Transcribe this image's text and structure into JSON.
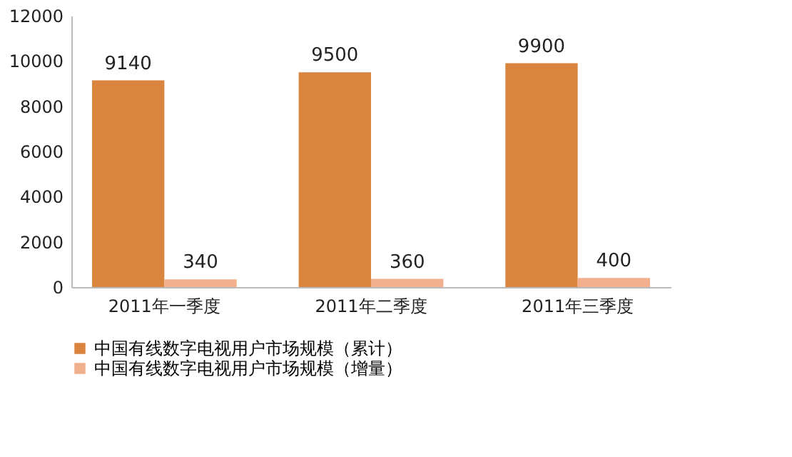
{
  "chart_data": {
    "type": "bar",
    "categories": [
      "2011年一季度",
      "2011年二季度",
      "2011年三季度"
    ],
    "series": [
      {
        "name": "中国有线数字电视用户市场规模（累计）",
        "color": "#d9843f",
        "values": [
          9140,
          9500,
          9900
        ]
      },
      {
        "name": "中国有线数字电视用户市场规模（增量）",
        "color": "#f2b08f",
        "values": [
          340,
          360,
          400
        ]
      }
    ],
    "ylim": [
      0,
      12000
    ],
    "yticks": [
      0,
      2000,
      4000,
      6000,
      8000,
      10000,
      12000
    ],
    "grid": false,
    "legend": "bottom",
    "data_labels": true
  }
}
